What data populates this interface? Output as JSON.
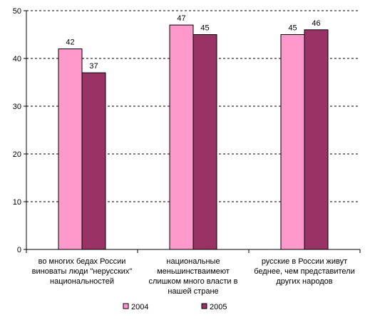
{
  "chart_data": {
    "type": "bar",
    "categories": [
      [
        "во многих бедах России",
        "виноваты люди \"нерусских\"",
        "национальностей"
      ],
      [
        "национальные",
        "меньшинстваимеют",
        "слишком много власти в",
        "нашей стране"
      ],
      [
        "русские в России живут",
        "беднее, чем представители",
        "других народов"
      ]
    ],
    "series": [
      {
        "name": "2004",
        "values": [
          42,
          47,
          45
        ],
        "color": "#ff99cc"
      },
      {
        "name": "2005",
        "values": [
          37,
          45,
          46
        ],
        "color": "#993366"
      }
    ],
    "yticks": [
      0,
      10,
      20,
      30,
      40,
      50
    ],
    "ylim": [
      0,
      50
    ],
    "grid": true,
    "legend": "bottom"
  }
}
